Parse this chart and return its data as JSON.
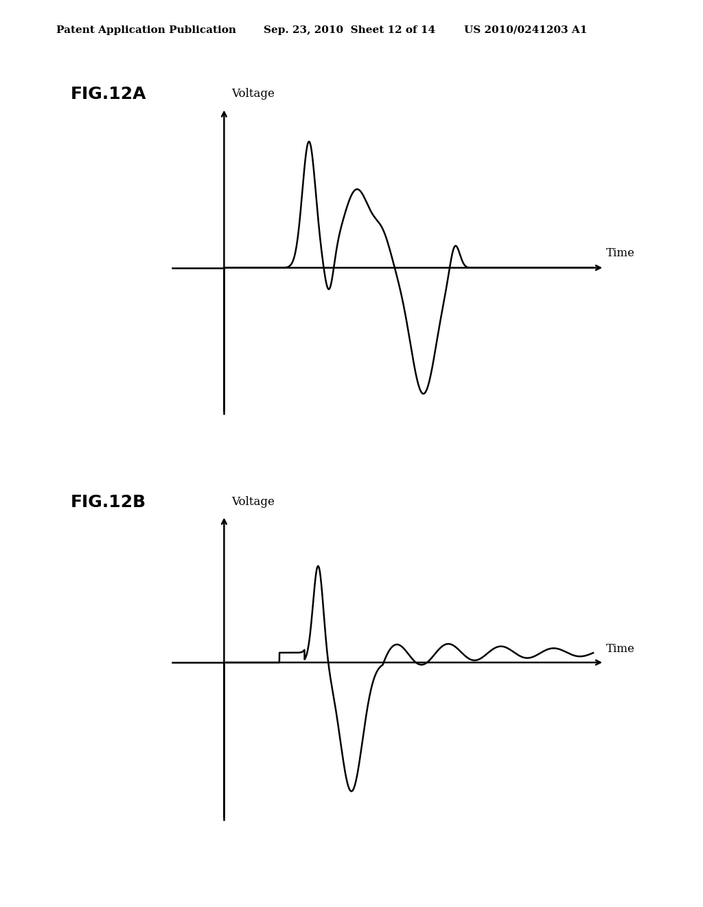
{
  "background_color": "#ffffff",
  "header_line1": "Patent Application Publication",
  "header_line2": "Sep. 23, 2010  Sheet 12 of 14",
  "header_line3": "US 2010/0241203 A1",
  "fig12a_label": "FIG.12A",
  "fig12b_label": "FIG.12B",
  "voltage_label": "Voltage",
  "time_label": "Time",
  "line_color": "#000000",
  "line_width": 1.8,
  "header_fontsize": 11,
  "fig_label_fontsize": 18,
  "axis_label_fontsize": 12
}
